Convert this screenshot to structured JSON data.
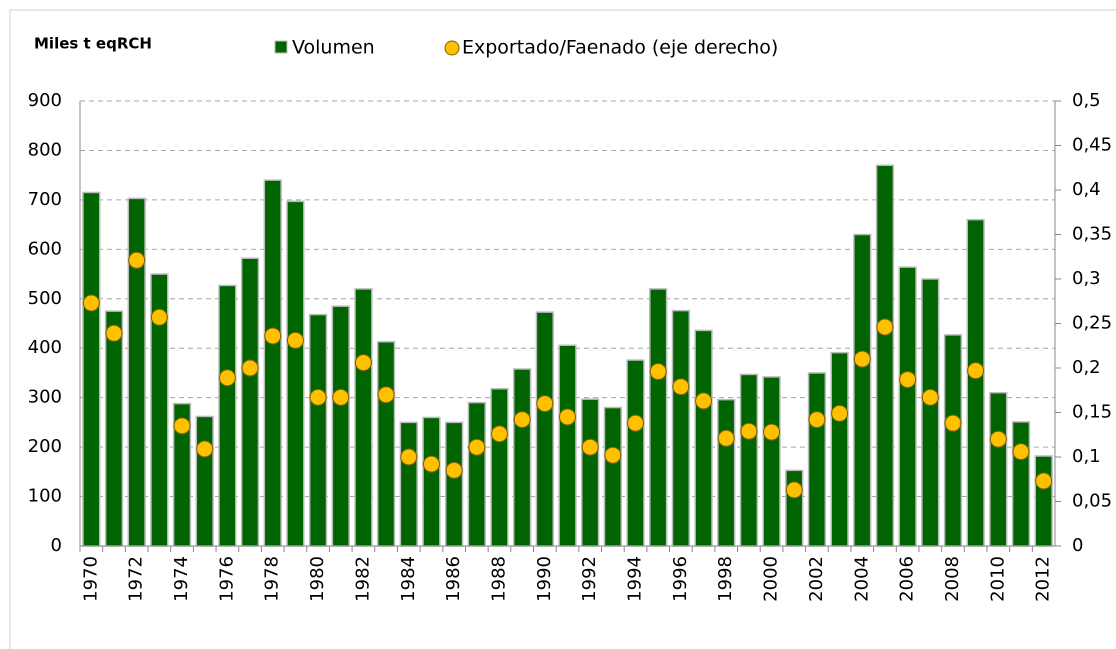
{
  "chart_data": {
    "type": "bar_dot",
    "y_label": "Miles t eqRCH",
    "categories": [
      "1970",
      null,
      "1972",
      null,
      "1974",
      null,
      "1976",
      null,
      "1978",
      null,
      "1980",
      null,
      "1982",
      null,
      "1984",
      null,
      "1986",
      null,
      "1988",
      null,
      "1990",
      null,
      "1992",
      null,
      "1994",
      null,
      "1996",
      null,
      "1998",
      null,
      "2000",
      null,
      "2002",
      null,
      "2004",
      null,
      "2006",
      null,
      "2008",
      null,
      "2010",
      null,
      "2012"
    ],
    "series": [
      {
        "name": "Volumen",
        "color": "#006400",
        "values": [
          715,
          475,
          703,
          550,
          288,
          262,
          527,
          582,
          740,
          697,
          468,
          485,
          520,
          413,
          250,
          260,
          250,
          290,
          318,
          358,
          473,
          406,
          297,
          280,
          376,
          520,
          476,
          436,
          296,
          347,
          342,
          153,
          350,
          391,
          630,
          770,
          564,
          540,
          427,
          660,
          310,
          251,
          182
        ]
      },
      {
        "name": "Exportado/Faenado (eje derecho)",
        "color": "#ffc000",
        "axis": "y2",
        "values": [
          0.273,
          0.239,
          0.321,
          0.257,
          0.135,
          0.109,
          0.189,
          0.2,
          0.236,
          0.231,
          0.167,
          0.167,
          0.206,
          0.17,
          0.1,
          0.092,
          0.085,
          0.111,
          0.126,
          0.142,
          0.16,
          0.145,
          0.111,
          0.102,
          0.138,
          0.196,
          0.179,
          0.163,
          0.121,
          0.129,
          0.128,
          0.063,
          0.142,
          0.149,
          0.21,
          0.246,
          0.187,
          0.167,
          0.138,
          0.197,
          0.12,
          0.106,
          0.073
        ]
      }
    ],
    "ylim": [
      0,
      900
    ],
    "yticks": [
      0,
      100,
      200,
      300,
      400,
      500,
      600,
      700,
      800,
      900
    ],
    "y2lim": [
      0,
      0.5
    ],
    "y2ticks": [
      0,
      {
        "value": 0.05,
        "label": "0,05"
      },
      {
        "value": 0.1,
        "label": "0,1"
      },
      {
        "value": 0.15,
        "label": "0,15"
      },
      {
        "value": 0.2,
        "label": "0,2"
      },
      {
        "value": 0.25,
        "label": "0,25"
      },
      {
        "value": 0.3,
        "label": "0,3"
      },
      {
        "value": 0.35,
        "label": "0,35"
      },
      {
        "value": 0.4,
        "label": "0,4"
      },
      {
        "value": 0.45,
        "label": "0,45"
      },
      {
        "value": 0.5,
        "label": "0,5"
      }
    ],
    "grid": true
  }
}
